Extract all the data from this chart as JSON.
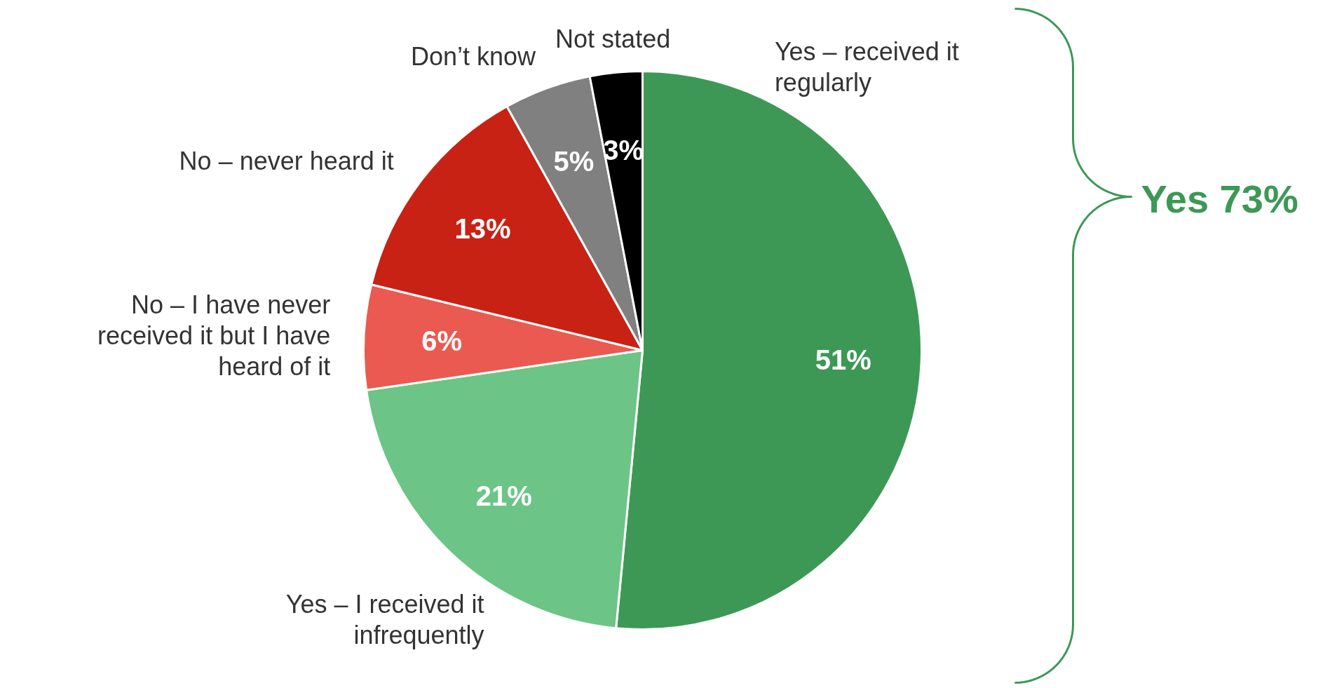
{
  "chart_data": {
    "type": "pie",
    "categories": [
      "Yes – received it regularly",
      "Yes – I received it infrequently",
      "No – I have never received it but I have heard of it",
      "No – never heard it",
      "Don’t know",
      "Not stated"
    ],
    "values": [
      51,
      21,
      6,
      13,
      5,
      3
    ],
    "colors": [
      "#3d9856",
      "#6cc586",
      "#ea5a50",
      "#c82215",
      "#808080",
      "#000000"
    ],
    "value_labels": [
      "51%",
      "21%",
      "6%",
      "13%",
      "5%",
      "3%"
    ],
    "annotations": [
      "Yes 73%"
    ]
  }
}
